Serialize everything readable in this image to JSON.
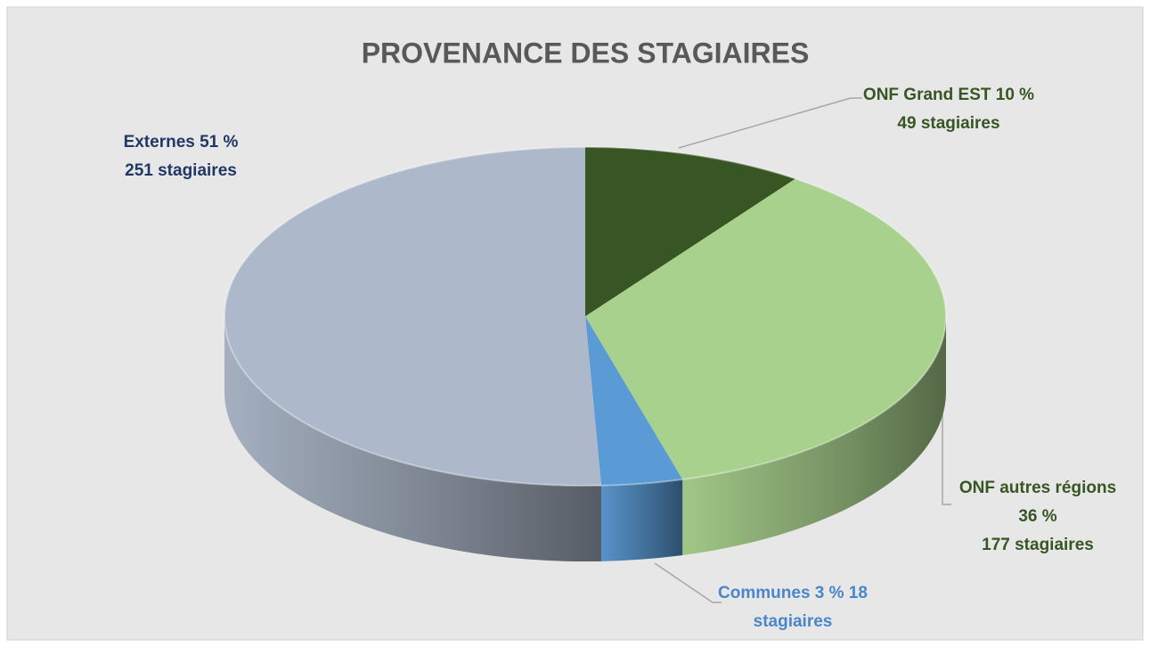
{
  "chart_data": {
    "type": "pie",
    "title": "PROVENANCE DES STAGIAIRES",
    "values": [
      49,
      177,
      18,
      251
    ],
    "colors": [
      "#375623",
      "#a9d18e",
      "#5b9bd5",
      "#adb9ca"
    ],
    "value_labels": [
      [
        "ONF Grand EST 10 %",
        "49 stagiaires"
      ],
      [
        "ONF autres régions",
        "36 %",
        "177 stagiaires"
      ],
      [
        "Communes 3 % 18",
        "stagiaires"
      ],
      [
        "Externes 51 %",
        "251 stagiaires"
      ]
    ],
    "label_colors": [
      "#375623",
      "#375623",
      "#4a86c8",
      "#1f3864"
    ]
  }
}
